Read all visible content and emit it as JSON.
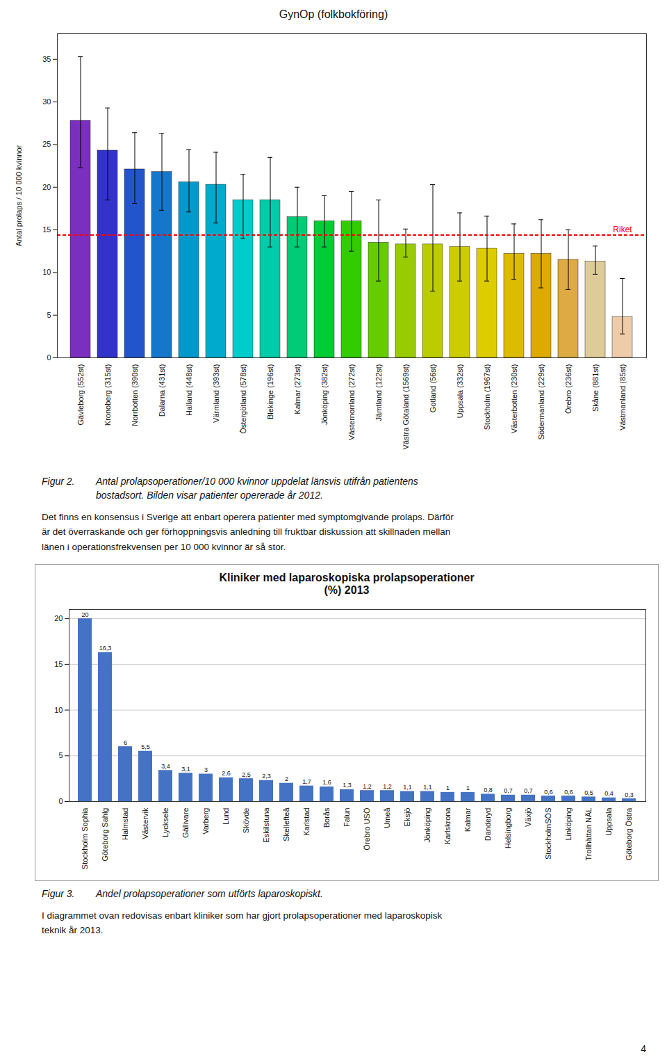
{
  "chart_data": [
    {
      "type": "bar",
      "title": "GynOp (folkbokföring)",
      "ylabel": "Antal prolaps / 10 000 kvinnor",
      "categories": [
        "Gävleborg (552st)",
        "Kronoberg (315st)",
        "Norrbotten (390st)",
        "Dalarna (431st)",
        "Halland (448st)",
        "Värmland (393st)",
        "Östergötland (578st)",
        "Blekinge (196st)",
        "Kalmar (273st)",
        "Jönköping (382st)",
        "Västernorrland (272st)",
        "Jämtland (122st)",
        "Västra Götaland (1569st)",
        "Gotland (56st)",
        "Uppsala (332st)",
        "Stockholm (1967st)",
        "Västerbotten (230st)",
        "Södermanland (229st)",
        "Örebro (236st)",
        "Skåne (881st)",
        "Västmanland (85st)"
      ],
      "values": [
        27.8,
        24.3,
        22.1,
        21.8,
        20.6,
        20.3,
        18.5,
        18.5,
        16.5,
        16.0,
        16.0,
        13.5,
        13.3,
        13.3,
        13.0,
        12.8,
        12.2,
        12.2,
        11.5,
        11.3,
        4.8
      ],
      "err_low": [
        5.5,
        5.8,
        4.0,
        4.5,
        3.5,
        4.5,
        4.5,
        5.5,
        3.5,
        3.0,
        3.5,
        4.5,
        1.5,
        5.5,
        4.0,
        3.8,
        3.0,
        4.0,
        3.5,
        1.5,
        2.0
      ],
      "err_high": [
        7.5,
        5.0,
        4.3,
        4.5,
        3.8,
        3.8,
        3.0,
        5.0,
        3.5,
        3.0,
        3.5,
        5.0,
        1.8,
        7.0,
        4.0,
        3.8,
        3.5,
        4.0,
        3.5,
        1.8,
        4.5
      ],
      "colors": [
        "#7B2FBE",
        "#3333CC",
        "#2255CC",
        "#1477CC",
        "#0099CC",
        "#00AACC",
        "#00CCCC",
        "#00CCAA",
        "#00CC77",
        "#00CC33",
        "#33CC00",
        "#66CC00",
        "#99CC00",
        "#BBCC00",
        "#CCCC00",
        "#DDCC00",
        "#DDBB00",
        "#DDAA00",
        "#DDAA44",
        "#DDCC99",
        "#EECCAA"
      ],
      "ylim": [
        0,
        38
      ],
      "yticks": [
        0,
        5,
        10,
        15,
        20,
        25,
        30,
        35
      ],
      "grid": false,
      "reference_line": {
        "value": 14.4,
        "label": "Riket",
        "color": "red"
      },
      "caption": {
        "label": "Figur 2.",
        "text": "Antal prolapsoperationer/10 000 kvinnor uppdelat länsvis utifrån patientens\nbostadsort. Bilden visar patienter opererade år 2012."
      },
      "text": [
        "Det finns en konsensus i Sverige att enbart operera patienter med symptomgivande prolaps. Därför",
        "är det överraskande och ger förhoppningsvis anledning till fruktbar diskussion att skillnaden mellan",
        "länen i operationsfrekvensen per 10 000 kvinnor är så stor."
      ]
    },
    {
      "type": "bar",
      "title": "Kliniker med laparoskopiska prolapsoperationer\n(%) 2013",
      "categories": [
        "Stockholm Sophia",
        "Göteborg Sahlg",
        "Halmstad",
        "Västervik",
        "Lycksele",
        "Gällivare",
        "Varberg",
        "Lund",
        "Skövde",
        "Eskilstuna",
        "Skellefteå",
        "Karlstad",
        "Borås",
        "Falun",
        "Örebro USÖ",
        "Umeå",
        "Eksjö",
        "Jönköping",
        "Karlskrona",
        "Kalmar",
        "Danderyd",
        "Helsingborg",
        "Växjö",
        "StockholmSÖS",
        "Linköping",
        "Trollhättan NÄL",
        "Uppsala",
        "Göteborg Östra"
      ],
      "values": [
        20.0,
        16.3,
        6.0,
        5.5,
        3.4,
        3.1,
        3.0,
        2.6,
        2.5,
        2.3,
        2.0,
        1.7,
        1.6,
        1.3,
        1.2,
        1.2,
        1.1,
        1.1,
        1.0,
        1.0,
        0.8,
        0.7,
        0.7,
        0.6,
        0.6,
        0.5,
        0.4,
        0.3
      ],
      "value_labels": [
        "20",
        "16,3",
        "6",
        "5,5",
        "3,4",
        "3,1",
        "3",
        "2,6",
        "2,5",
        "2,3",
        "2",
        "1,7",
        "1,6",
        "1,3",
        "1,2",
        "1,2",
        "1,1",
        "1,1",
        "1",
        "1",
        "0,8",
        "0,7",
        "0,7",
        "0,6",
        "0,6",
        "0,5",
        "0,4",
        "0,3"
      ],
      "data_labels": true,
      "color": "#4472C4",
      "ylim": [
        0,
        21
      ],
      "yticks": [
        0,
        5,
        10,
        15,
        20
      ],
      "grid": true,
      "caption": {
        "label": "Figur 3.",
        "text": "Andel prolapsoperationer som utförts laparoskopiskt."
      },
      "text": [
        "I diagrammet ovan redovisas enbart kliniker som har gjort prolapsoperationer med laparoskopisk",
        "teknik år 2013."
      ]
    }
  ],
  "page_number": "4"
}
